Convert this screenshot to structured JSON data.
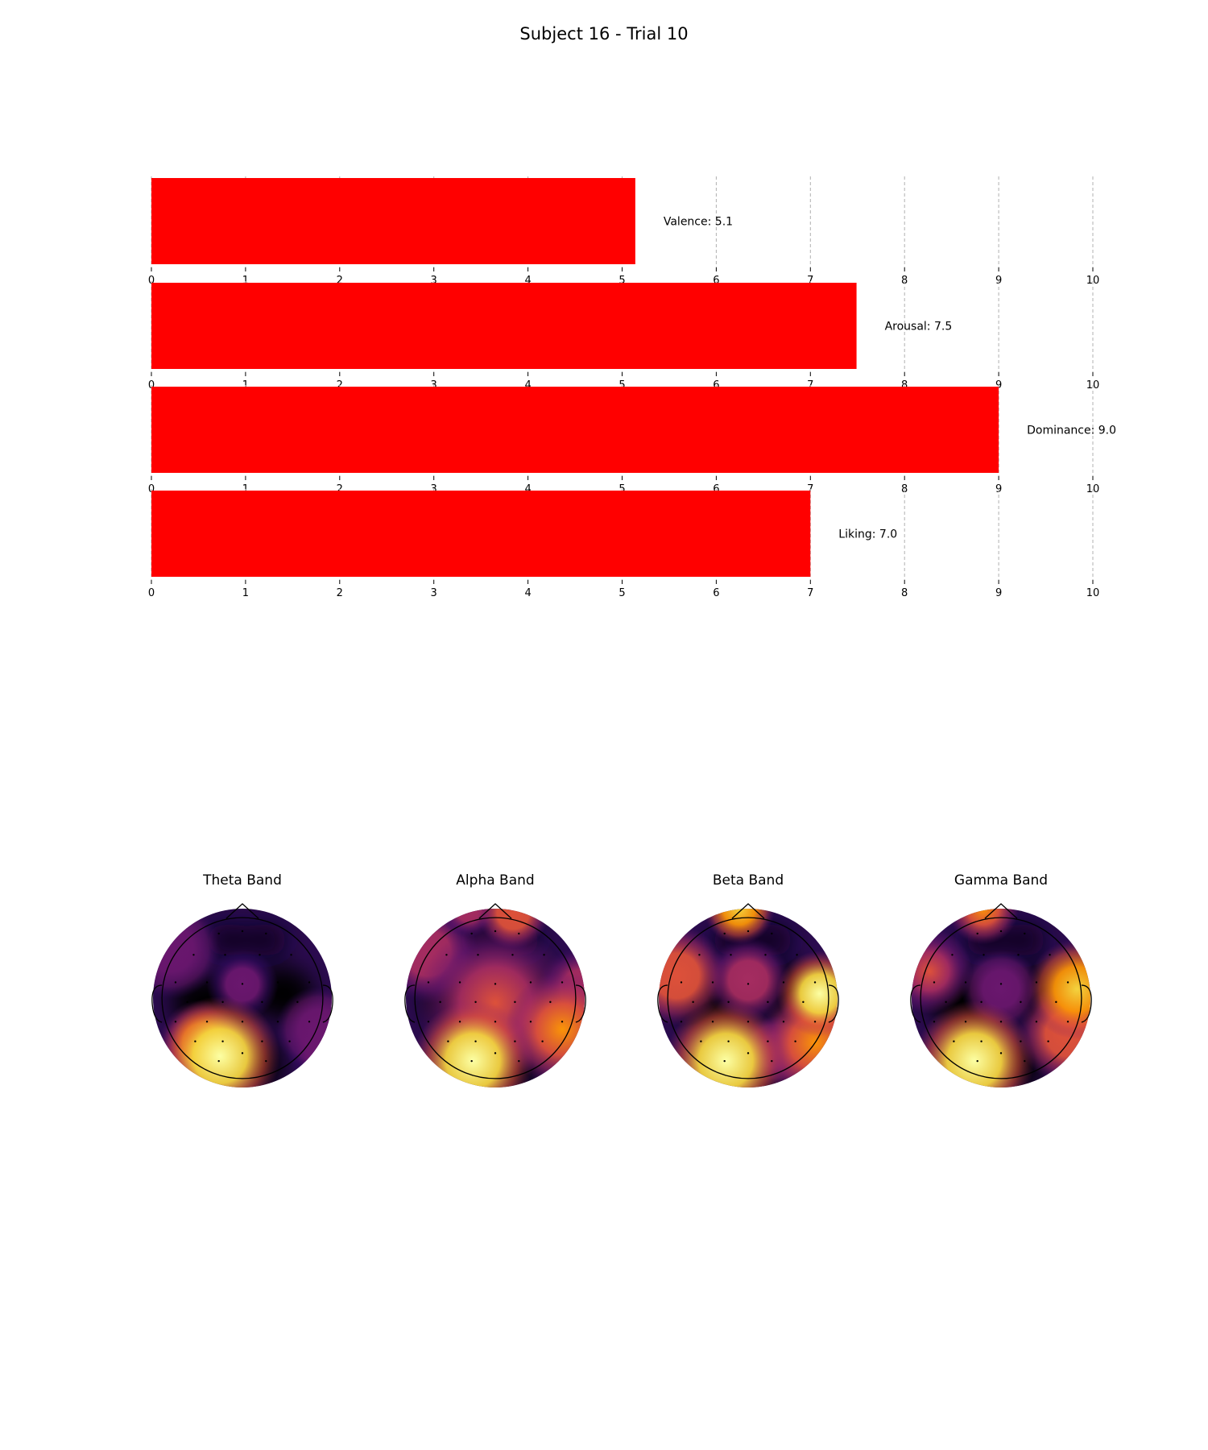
{
  "figure": {
    "title": "Subject 16 - Trial 10"
  },
  "chart_data": [
    {
      "type": "bar",
      "orientation": "horizontal",
      "panels": [
        {
          "name": "Valence",
          "value": 5.14,
          "label": "Valence: 5.1"
        },
        {
          "name": "Arousal",
          "value": 7.49,
          "label": "Arousal: 7.5"
        },
        {
          "name": "Dominance",
          "value": 9.0,
          "label": "Dominance: 9.0"
        },
        {
          "name": "Liking",
          "value": 7.0,
          "label": "Liking: 7.0"
        }
      ],
      "xlim": [
        0,
        10
      ],
      "xticks": [
        0,
        1,
        2,
        3,
        4,
        5,
        6,
        7,
        8,
        9,
        10
      ],
      "grid": true,
      "bar_color": "#ff0000"
    },
    {
      "type": "heatmap",
      "subtype": "eeg-topomap",
      "colormap": "inferno",
      "maps": [
        {
          "title": "Theta Band",
          "blobs": [
            {
              "cx": -0.25,
              "cy": 0.65,
              "r": 0.42,
              "v": 1.0
            },
            {
              "cx": -0.45,
              "cy": 0.5,
              "r": 0.3,
              "v": 0.8
            },
            {
              "cx": -0.8,
              "cy": -0.55,
              "r": 0.35,
              "v": 0.35
            },
            {
              "cx": 0.0,
              "cy": -0.15,
              "r": 0.25,
              "v": 0.3
            },
            {
              "cx": 0.85,
              "cy": 0.35,
              "r": 0.3,
              "v": 0.35
            },
            {
              "cx": 0.9,
              "cy": 0.6,
              "r": 0.25,
              "v": 0.3
            }
          ]
        },
        {
          "title": "Alpha Band",
          "blobs": [
            {
              "cx": -0.25,
              "cy": 0.7,
              "r": 0.42,
              "v": 1.0
            },
            {
              "cx": 0.0,
              "cy": 0.05,
              "r": 0.55,
              "v": 0.55
            },
            {
              "cx": 0.75,
              "cy": 0.35,
              "r": 0.4,
              "v": 0.75
            },
            {
              "cx": -0.75,
              "cy": -0.5,
              "r": 0.35,
              "v": 0.45
            },
            {
              "cx": 0.2,
              "cy": -0.95,
              "r": 0.25,
              "v": 0.6
            },
            {
              "cx": 0.95,
              "cy": -0.1,
              "r": 0.3,
              "v": 0.5
            },
            {
              "cx": -0.3,
              "cy": -1.0,
              "r": 0.2,
              "v": 0.45
            }
          ]
        },
        {
          "title": "Beta Band",
          "blobs": [
            {
              "cx": -0.25,
              "cy": 0.7,
              "r": 0.42,
              "v": 1.0
            },
            {
              "cx": 0.8,
              "cy": -0.05,
              "r": 0.3,
              "v": 0.95
            },
            {
              "cx": 0.75,
              "cy": 0.5,
              "r": 0.4,
              "v": 0.7
            },
            {
              "cx": -0.8,
              "cy": -0.25,
              "r": 0.35,
              "v": 0.65
            },
            {
              "cx": -0.1,
              "cy": -1.0,
              "r": 0.25,
              "v": 0.85
            },
            {
              "cx": 0.0,
              "cy": -0.2,
              "r": 0.3,
              "v": 0.45
            },
            {
              "cx": 0.3,
              "cy": 0.6,
              "r": 0.25,
              "v": 0.35
            }
          ]
        },
        {
          "title": "Gamma Band",
          "blobs": [
            {
              "cx": -0.3,
              "cy": 0.7,
              "r": 0.42,
              "v": 1.0
            },
            {
              "cx": 0.85,
              "cy": -0.1,
              "r": 0.35,
              "v": 0.85
            },
            {
              "cx": 0.75,
              "cy": 0.4,
              "r": 0.35,
              "v": 0.6
            },
            {
              "cx": -0.8,
              "cy": -0.3,
              "r": 0.3,
              "v": 0.55
            },
            {
              "cx": -0.2,
              "cy": -1.0,
              "r": 0.25,
              "v": 0.7
            },
            {
              "cx": 0.0,
              "cy": -0.1,
              "r": 0.28,
              "v": 0.35
            }
          ]
        }
      ]
    }
  ]
}
